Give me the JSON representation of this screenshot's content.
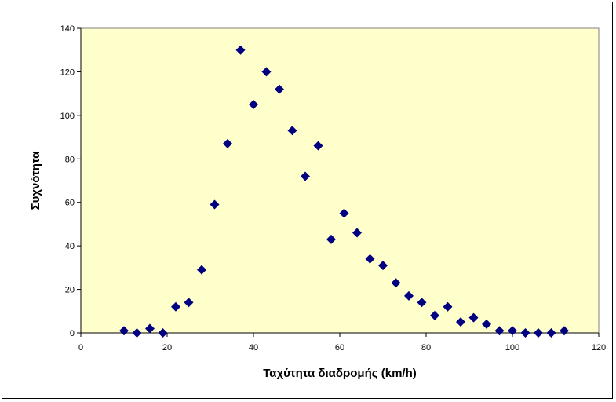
{
  "colors": {
    "plot_background": "#FFFFCC",
    "marker": "#000080",
    "axis": "#808080"
  },
  "chart_data": {
    "type": "scatter",
    "title": "",
    "xlabel": "Ταχύτητα διαδρομής (km/h)",
    "ylabel": "Συχνότητα",
    "xlim": [
      0,
      120
    ],
    "ylim": [
      0,
      140
    ],
    "x_ticks": [
      0,
      20,
      40,
      60,
      80,
      100,
      120
    ],
    "y_ticks": [
      0,
      20,
      40,
      60,
      80,
      100,
      120,
      140
    ],
    "grid": false,
    "legend": "none",
    "marker": "diamond",
    "series": [
      {
        "x": [
          10,
          13,
          16,
          19,
          22,
          25,
          28,
          31,
          34,
          37,
          40,
          43,
          46,
          49,
          52,
          55,
          58,
          61,
          64,
          67,
          70,
          73,
          76,
          79,
          82,
          85,
          88,
          91,
          94,
          97,
          100,
          103,
          106,
          109,
          112
        ],
        "y": [
          1,
          0,
          2,
          0,
          12,
          14,
          29,
          59,
          87,
          130,
          105,
          120,
          112,
          93,
          72,
          86,
          43,
          55,
          46,
          34,
          31,
          23,
          17,
          14,
          8,
          12,
          5,
          7,
          4,
          1,
          1,
          0,
          0,
          0,
          1
        ]
      }
    ]
  }
}
